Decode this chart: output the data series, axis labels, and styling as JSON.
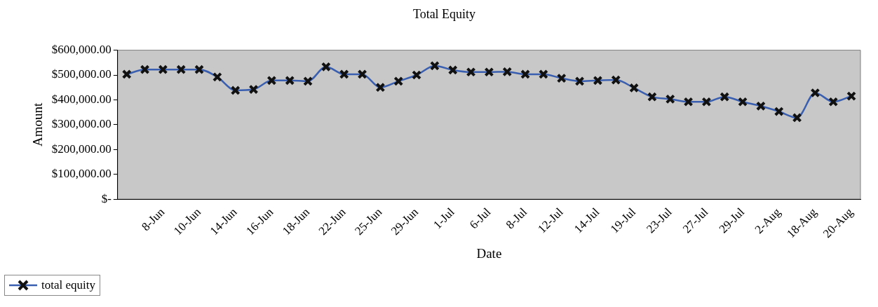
{
  "chart_data": {
    "type": "line",
    "title": "Total Equity",
    "xlabel": "Date",
    "ylabel": "Amount",
    "categories": [
      null,
      null,
      "8-Jun",
      null,
      "10-Jun",
      null,
      "14-Jun",
      null,
      "16-Jun",
      null,
      "18-Jun",
      null,
      "22-Jun",
      null,
      "25-Jun",
      null,
      "29-Jun",
      null,
      "1-Jul",
      null,
      "6-Jul",
      null,
      "8-Jul",
      null,
      "12-Jul",
      null,
      "14-Jul",
      null,
      "19-Jul",
      null,
      "23-Jul",
      null,
      "27-Jul",
      null,
      "29-Jul",
      null,
      "2-Aug",
      null,
      "18-Aug",
      null,
      "20-Aug"
    ],
    "series": [
      {
        "name": "total equity",
        "color": "#3a5fb0",
        "values": [
          503000,
          522000,
          522000,
          522000,
          522000,
          492000,
          438000,
          442000,
          478000,
          478000,
          475000,
          533000,
          503000,
          503000,
          450000,
          475000,
          500000,
          537000,
          520000,
          512000,
          512000,
          513000,
          503000,
          503000,
          487000,
          475000,
          478000,
          480000,
          448000,
          412000,
          403000,
          392000,
          392000,
          412000,
          392000,
          375000,
          353000,
          328000,
          428000,
          392000,
          415000
        ]
      }
    ],
    "ylim": [
      0,
      600000
    ],
    "yticks": [
      {
        "value": 0,
        "label": "$-"
      },
      {
        "value": 100000,
        "label": "$100,000.00"
      },
      {
        "value": 200000,
        "label": "$200,000.00"
      },
      {
        "value": 300000,
        "label": "$300,000.00"
      },
      {
        "value": 400000,
        "label": "$400,000.00"
      },
      {
        "value": 500000,
        "label": "$500,000.00"
      },
      {
        "value": 600000,
        "label": "$600,000.00"
      }
    ],
    "grid": false,
    "legend": "bottom left",
    "marker": "cross",
    "line_style": "solid"
  }
}
